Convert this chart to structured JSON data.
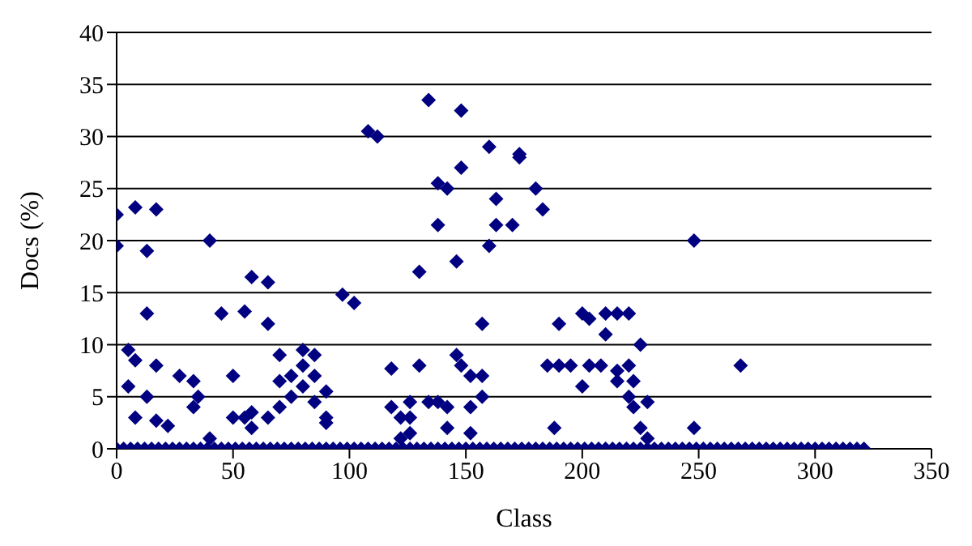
{
  "chart_data": {
    "type": "scatter",
    "xlabel": "Class",
    "ylabel": "Docs (%)",
    "xlim": [
      0,
      350
    ],
    "xticks": [
      0,
      50,
      100,
      150,
      200,
      250,
      300,
      350
    ],
    "ylim": [
      0,
      40
    ],
    "yticks": [
      0,
      5,
      10,
      15,
      20,
      25,
      30,
      35,
      40
    ],
    "grid": "y",
    "marker": "diamond",
    "legend": false,
    "series": [
      {
        "color": "#000080",
        "x": [
          0,
          0,
          5,
          5,
          8,
          8,
          8,
          13,
          13,
          13,
          17,
          17,
          17,
          22,
          27,
          33,
          33,
          35,
          40,
          40,
          45,
          50,
          50,
          55,
          55,
          58,
          58,
          58,
          65,
          65,
          65,
          70,
          70,
          70,
          75,
          75,
          80,
          80,
          80,
          85,
          85,
          85,
          90,
          90,
          90,
          97,
          102,
          108,
          112,
          118,
          118,
          122,
          122,
          126,
          126,
          126,
          130,
          130,
          134,
          134,
          138,
          138,
          138,
          142,
          142,
          142,
          146,
          146,
          148,
          148,
          148,
          152,
          152,
          152,
          157,
          157,
          157,
          160,
          160,
          163,
          163,
          170,
          173,
          173,
          180,
          183,
          185,
          188,
          190,
          190,
          195,
          200,
          200,
          203,
          203,
          208,
          210,
          210,
          215,
          215,
          215,
          220,
          220,
          220,
          222,
          222,
          225,
          225,
          228,
          228,
          248,
          248,
          268
        ],
        "values": [
          19.5,
          22.5,
          9.5,
          6,
          8.5,
          3,
          23.2,
          13,
          19,
          5,
          23,
          8,
          2.7,
          2.2,
          7,
          6.5,
          4,
          5,
          20,
          1,
          13,
          7,
          3,
          13.2,
          3,
          16.5,
          3.5,
          2,
          16,
          12,
          3,
          9,
          6.5,
          4,
          7,
          5,
          8,
          9.5,
          6,
          4.5,
          7,
          9,
          5.5,
          3,
          2.5,
          14.8,
          14,
          30.5,
          30,
          7.7,
          4,
          3,
          1,
          4.5,
          3,
          1.5,
          17,
          8,
          33.5,
          4.5,
          25.5,
          21.5,
          4.5,
          25,
          4,
          2,
          18,
          9,
          32.5,
          27,
          8,
          7,
          4,
          1.5,
          12,
          7,
          5,
          29,
          19.5,
          24,
          21.5,
          21.5,
          28.3,
          28,
          25,
          23,
          8,
          2,
          12,
          8,
          8,
          13,
          6,
          12.5,
          8,
          8,
          13,
          11,
          13,
          7.5,
          6.5,
          13,
          8,
          5,
          4,
          6.5,
          10,
          2,
          4.5,
          1,
          20,
          2,
          8
        ]
      },
      {
        "color": "#000080",
        "x": [
          0,
          3,
          6,
          9,
          12,
          15,
          18,
          21,
          24,
          27,
          30,
          33,
          36,
          39,
          42,
          45,
          48,
          51,
          54,
          57,
          60,
          63,
          66,
          69,
          72,
          75,
          78,
          81,
          84,
          87,
          90,
          93,
          96,
          99,
          102,
          105,
          108,
          111,
          114,
          117,
          120,
          123,
          126,
          129,
          132,
          135,
          138,
          141,
          144,
          147,
          150,
          153,
          156,
          159,
          162,
          165,
          168,
          171,
          174,
          177,
          180,
          183,
          186,
          189,
          192,
          195,
          198,
          201,
          204,
          207,
          210,
          213,
          216,
          219,
          222,
          225,
          228,
          231,
          234,
          237,
          240,
          243,
          246,
          249,
          252,
          255,
          258,
          261,
          264,
          267,
          270,
          273,
          276,
          279,
          282,
          285,
          288,
          291,
          294,
          297,
          300,
          303,
          306,
          309,
          312,
          315,
          318,
          321
        ],
        "values": [
          0,
          0,
          0,
          0,
          0,
          0,
          0,
          0,
          0,
          0,
          0,
          0,
          0,
          0,
          0,
          0,
          0,
          0,
          0,
          0,
          0,
          0,
          0,
          0,
          0,
          0,
          0,
          0,
          0,
          0,
          0,
          0,
          0,
          0,
          0,
          0,
          0,
          0,
          0,
          0,
          0,
          0,
          0,
          0,
          0,
          0,
          0,
          0,
          0,
          0,
          0,
          0,
          0,
          0,
          0,
          0,
          0,
          0,
          0,
          0,
          0,
          0,
          0,
          0,
          0,
          0,
          0,
          0,
          0,
          0,
          0,
          0,
          0,
          0,
          0,
          0,
          0,
          0,
          0,
          0,
          0,
          0,
          0,
          0,
          0,
          0,
          0,
          0,
          0,
          0,
          0,
          0,
          0,
          0,
          0,
          0,
          0,
          0,
          0,
          0,
          0,
          0,
          0,
          0,
          0,
          0,
          0,
          0
        ]
      }
    ]
  }
}
